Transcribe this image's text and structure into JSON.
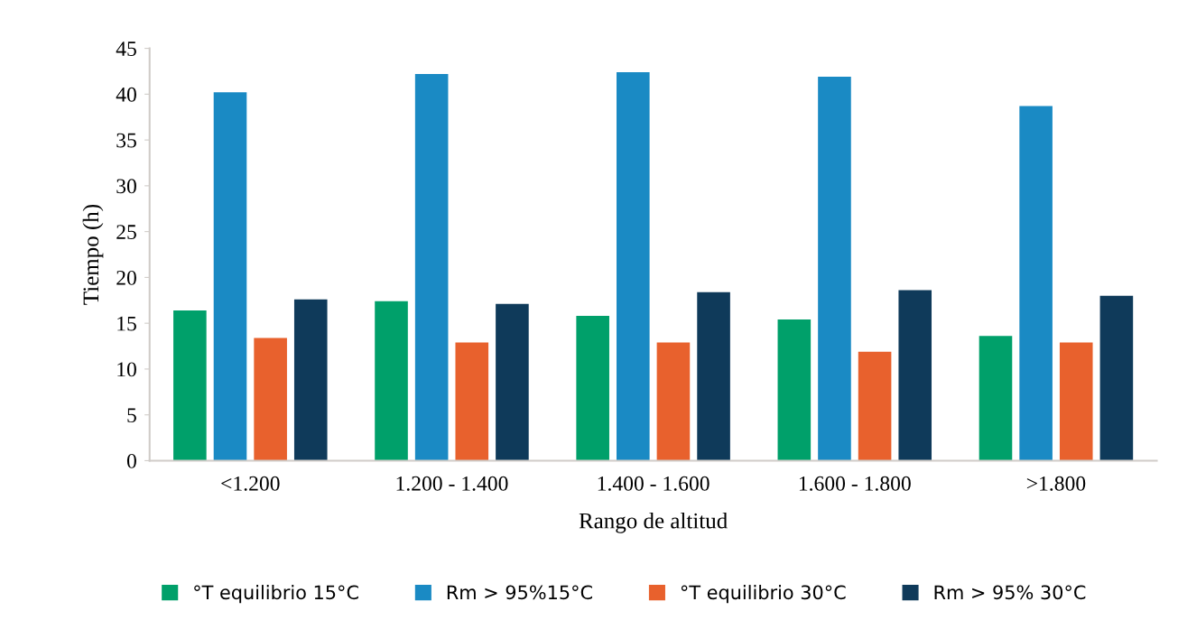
{
  "chart_data": {
    "type": "bar",
    "xlabel": "Rango de altitud",
    "ylabel": "Tiempo (h)",
    "categories": [
      "<1.200",
      "1.200 - 1.400",
      "1.400 - 1.600",
      "1.600 - 1.800",
      ">1.800"
    ],
    "series": [
      {
        "name": "°T equilibrio 15°C",
        "color": "#00a06a",
        "values": [
          16.4,
          17.4,
          15.8,
          15.4,
          13.6
        ]
      },
      {
        "name": "Rm > 95%15°C",
        "color": "#1a8ac4",
        "values": [
          40.2,
          42.2,
          42.4,
          41.9,
          38.7
        ]
      },
      {
        "name": "°T equilibrio 30°C",
        "color": "#e8612d",
        "values": [
          13.4,
          12.9,
          12.9,
          11.9,
          12.9
        ]
      },
      {
        "name": "Rm > 95% 30°C",
        "color": "#0f3a5a",
        "values": [
          17.6,
          17.1,
          18.4,
          18.6,
          18.0
        ]
      }
    ],
    "ylim": [
      0,
      45
    ],
    "yticks": [
      0,
      5,
      10,
      15,
      20,
      25,
      30,
      35,
      40,
      45
    ],
    "grid": false,
    "legend": "bottom"
  }
}
